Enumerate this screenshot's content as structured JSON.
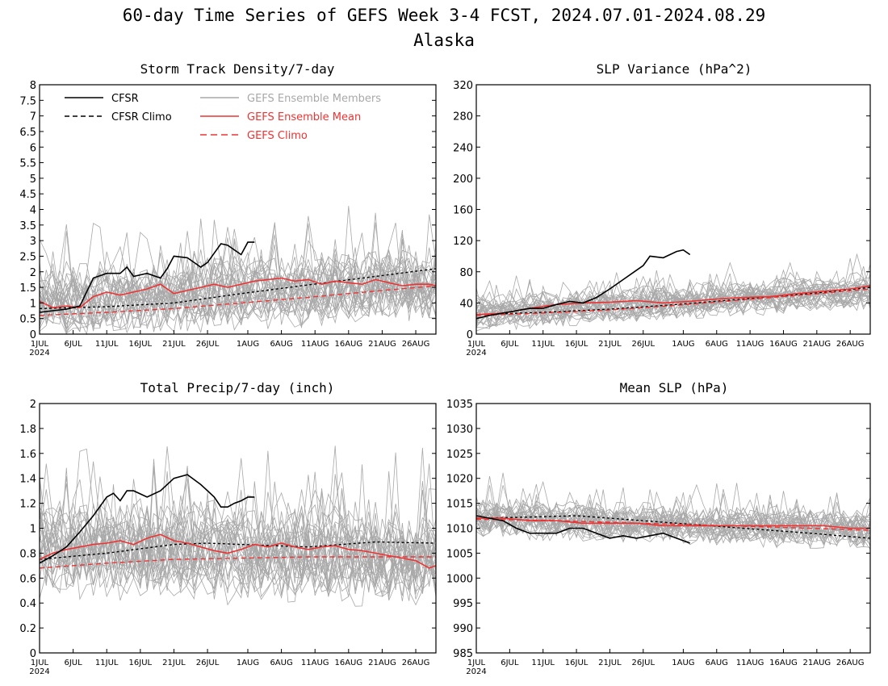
{
  "figure": {
    "title": "60-day Time Series of GEFS Week 3-4 FCST, 2024.07.01-2024.08.29",
    "subtitle": "Alaska"
  },
  "colors": {
    "cfsr": "#000000",
    "members": "#a8a8a8",
    "ens_mean": "#ee3333",
    "gefs_climo": "#ee3333"
  },
  "legend": {
    "cfsr": "CFSR",
    "cfsr_climo": "CFSR Climo",
    "members": "GEFS Ensemble Members",
    "ens_mean": "GEFS Ensemble Mean",
    "gefs_climo": "GEFS Climo"
  },
  "x_axis": {
    "start": "2024-07-01",
    "days": 60,
    "tick_labels": [
      "1JUL",
      "6JUL",
      "11JUL",
      "16JUL",
      "21JUL",
      "26JUL",
      "1AUG",
      "6AUG",
      "11AUG",
      "16AUG",
      "21AUG",
      "26AUG"
    ],
    "tick_days": [
      0,
      5,
      10,
      15,
      20,
      25,
      31,
      36,
      41,
      46,
      51,
      56
    ],
    "year_label": "2024"
  },
  "chart_data": [
    {
      "type": "line",
      "title": "Storm Track Density/7-day",
      "ylim": [
        0,
        8
      ],
      "yticks": [
        "0",
        "0.5",
        "1",
        "1.5",
        "2",
        "2.5",
        "3",
        "3.5",
        "4",
        "4.5",
        "5",
        "5.5",
        "6",
        "6.5",
        "7",
        "7.5",
        "8"
      ],
      "ytick_values": [
        0,
        0.5,
        1,
        1.5,
        2,
        2.5,
        3,
        3.5,
        4,
        4.5,
        5,
        5.5,
        6,
        6.5,
        7,
        7.5,
        8
      ],
      "show_legend": true,
      "members": {
        "count": 30,
        "base": [
          1.0,
          1.6
        ],
        "amp": 0.75
      },
      "series": [
        {
          "key": "cfsr",
          "style": "solid",
          "x": [
            0,
            2,
            4,
            6,
            8,
            10,
            12,
            13,
            14,
            16,
            18,
            19,
            20,
            22,
            24,
            25,
            27,
            28,
            30,
            31,
            32
          ],
          "values": [
            0.7,
            0.75,
            0.8,
            0.9,
            1.8,
            1.95,
            1.95,
            2.15,
            1.85,
            1.95,
            1.8,
            2.1,
            2.5,
            2.45,
            2.15,
            2.3,
            2.9,
            2.85,
            2.55,
            2.95,
            2.95
          ]
        },
        {
          "key": "cfsr_climo",
          "style": "dashed",
          "x": [
            0,
            10,
            20,
            30,
            40,
            50,
            59
          ],
          "values": [
            0.82,
            0.88,
            1.0,
            1.3,
            1.58,
            1.85,
            2.1
          ]
        },
        {
          "key": "ens_mean",
          "style": "solid",
          "x": [
            0,
            2,
            4,
            6,
            8,
            10,
            12,
            14,
            16,
            18,
            20,
            22,
            24,
            26,
            28,
            30,
            32,
            34,
            36,
            38,
            40,
            42,
            44,
            46,
            48,
            50,
            52,
            54,
            56,
            58,
            59
          ],
          "values": [
            1.05,
            0.85,
            0.9,
            0.85,
            1.2,
            1.35,
            1.25,
            1.35,
            1.45,
            1.6,
            1.3,
            1.4,
            1.5,
            1.6,
            1.5,
            1.6,
            1.7,
            1.75,
            1.8,
            1.7,
            1.75,
            1.6,
            1.7,
            1.65,
            1.6,
            1.75,
            1.65,
            1.55,
            1.6,
            1.6,
            1.55
          ]
        },
        {
          "key": "gefs_climo",
          "style": "dashed",
          "x": [
            0,
            10,
            20,
            30,
            40,
            50,
            59
          ],
          "values": [
            0.6,
            0.7,
            0.82,
            1.0,
            1.18,
            1.38,
            1.55
          ]
        }
      ]
    },
    {
      "type": "line",
      "title": "SLP Variance (hPa^2)",
      "ylim": [
        0,
        320
      ],
      "yticks": [
        "0",
        "40",
        "80",
        "120",
        "160",
        "200",
        "240",
        "280",
        "320"
      ],
      "ytick_values": [
        0,
        40,
        80,
        120,
        160,
        200,
        240,
        280,
        320
      ],
      "show_legend": false,
      "members": {
        "count": 30,
        "base": [
          27,
          55
        ],
        "amp": 14
      },
      "series": [
        {
          "key": "cfsr",
          "style": "solid",
          "x": [
            0,
            2,
            4,
            6,
            8,
            10,
            12,
            14,
            16,
            18,
            20,
            22,
            24,
            25,
            26,
            28,
            30,
            31,
            32
          ],
          "values": [
            20,
            24,
            27,
            30,
            33,
            33,
            38,
            42,
            40,
            47,
            58,
            70,
            82,
            88,
            100,
            98,
            106,
            108,
            102
          ]
        },
        {
          "key": "cfsr_climo",
          "style": "dashed",
          "x": [
            0,
            10,
            20,
            30,
            40,
            50,
            59
          ],
          "values": [
            25,
            28,
            32,
            38,
            45,
            52,
            60
          ]
        },
        {
          "key": "ens_mean",
          "style": "solid",
          "x": [
            0,
            4,
            8,
            12,
            16,
            20,
            24,
            28,
            32,
            36,
            40,
            44,
            48,
            52,
            56,
            59
          ],
          "values": [
            25,
            27,
            33,
            38,
            40,
            41,
            43,
            40,
            42,
            45,
            47,
            48,
            52,
            55,
            58,
            62
          ]
        },
        {
          "key": "gefs_climo",
          "style": "dashed",
          "x": [
            0,
            10,
            20,
            30,
            40,
            50,
            59
          ],
          "values": [
            24,
            27,
            31,
            37,
            44,
            51,
            58
          ]
        }
      ]
    },
    {
      "type": "line",
      "title": "Total Precip/7-day (inch)",
      "ylim": [
        0,
        2
      ],
      "yticks": [
        "0",
        "0.2",
        "0.4",
        "0.6",
        "0.8",
        "1",
        "1.2",
        "1.4",
        "1.6",
        "1.8",
        "2"
      ],
      "ytick_values": [
        0,
        0.2,
        0.4,
        0.6,
        0.8,
        1,
        1.2,
        1.4,
        1.6,
        1.8,
        2
      ],
      "show_legend": false,
      "members": {
        "count": 30,
        "base": [
          0.85,
          0.75
        ],
        "amp": 0.25
      },
      "series": [
        {
          "key": "cfsr",
          "style": "solid",
          "x": [
            0,
            2,
            4,
            6,
            8,
            10,
            11,
            12,
            13,
            14,
            16,
            18,
            20,
            22,
            24,
            25,
            26,
            27,
            28,
            29,
            30,
            31,
            32
          ],
          "values": [
            0.72,
            0.78,
            0.85,
            0.97,
            1.1,
            1.25,
            1.28,
            1.22,
            1.3,
            1.3,
            1.25,
            1.3,
            1.4,
            1.43,
            1.35,
            1.3,
            1.25,
            1.17,
            1.17,
            1.2,
            1.22,
            1.25,
            1.25
          ]
        },
        {
          "key": "cfsr_climo",
          "style": "dashed",
          "x": [
            0,
            10,
            20,
            25,
            30,
            40,
            50,
            59
          ],
          "values": [
            0.75,
            0.8,
            0.87,
            0.88,
            0.87,
            0.85,
            0.89,
            0.88
          ]
        },
        {
          "key": "ens_mean",
          "style": "solid",
          "x": [
            0,
            2,
            4,
            6,
            8,
            10,
            12,
            14,
            16,
            18,
            20,
            22,
            24,
            26,
            28,
            30,
            32,
            34,
            36,
            38,
            40,
            42,
            44,
            46,
            48,
            50,
            52,
            54,
            56,
            58,
            59
          ],
          "values": [
            0.75,
            0.8,
            0.83,
            0.85,
            0.87,
            0.88,
            0.9,
            0.87,
            0.92,
            0.95,
            0.9,
            0.88,
            0.85,
            0.82,
            0.8,
            0.83,
            0.87,
            0.85,
            0.88,
            0.85,
            0.83,
            0.85,
            0.86,
            0.83,
            0.82,
            0.8,
            0.78,
            0.76,
            0.74,
            0.68,
            0.7
          ]
        },
        {
          "key": "gefs_climo",
          "style": "dashed",
          "x": [
            0,
            10,
            20,
            30,
            40,
            50,
            59
          ],
          "values": [
            0.68,
            0.72,
            0.75,
            0.76,
            0.77,
            0.77,
            0.77
          ]
        }
      ]
    },
    {
      "type": "line",
      "title": "Mean SLP (hPa)",
      "ylim": [
        985,
        1035
      ],
      "yticks": [
        "985",
        "990",
        "995",
        "1000",
        "1005",
        "1010",
        "1015",
        "1020",
        "1025",
        "1030",
        "1035"
      ],
      "ytick_values": [
        985,
        990,
        995,
        1000,
        1005,
        1010,
        1015,
        1020,
        1025,
        1030,
        1035
      ],
      "show_legend": false,
      "members": {
        "count": 30,
        "base": [
          1012,
          1009.5
        ],
        "amp": 2.6
      },
      "series": [
        {
          "key": "cfsr",
          "style": "solid",
          "x": [
            0,
            2,
            4,
            6,
            8,
            10,
            12,
            14,
            16,
            18,
            20,
            22,
            24,
            26,
            28,
            30,
            32
          ],
          "values": [
            1012.5,
            1012,
            1011.5,
            1010,
            1009,
            1009,
            1009,
            1010,
            1010,
            1009,
            1008,
            1008.5,
            1008,
            1008.5,
            1009,
            1008,
            1007
          ]
        },
        {
          "key": "cfsr_climo",
          "style": "dashed",
          "x": [
            0,
            10,
            15,
            20,
            30,
            40,
            50,
            59
          ],
          "values": [
            1012,
            1012.3,
            1012.5,
            1012,
            1011,
            1010,
            1009,
            1008
          ]
        },
        {
          "key": "ens_mean",
          "style": "solid",
          "x": [
            0,
            4,
            8,
            12,
            16,
            20,
            24,
            28,
            32,
            36,
            40,
            44,
            48,
            52,
            56,
            59
          ],
          "values": [
            1012,
            1012,
            1011.5,
            1011.5,
            1011,
            1011,
            1011,
            1010.5,
            1010.5,
            1010.5,
            1010.5,
            1010.5,
            1010.5,
            1010.5,
            1010,
            1010
          ]
        },
        {
          "key": "gefs_climo",
          "style": "dashed",
          "x": [
            0,
            10,
            20,
            30,
            40,
            50,
            59
          ],
          "values": [
            1011.8,
            1011.6,
            1011.2,
            1010.8,
            1010.4,
            1010.0,
            1009.6
          ]
        }
      ]
    }
  ]
}
